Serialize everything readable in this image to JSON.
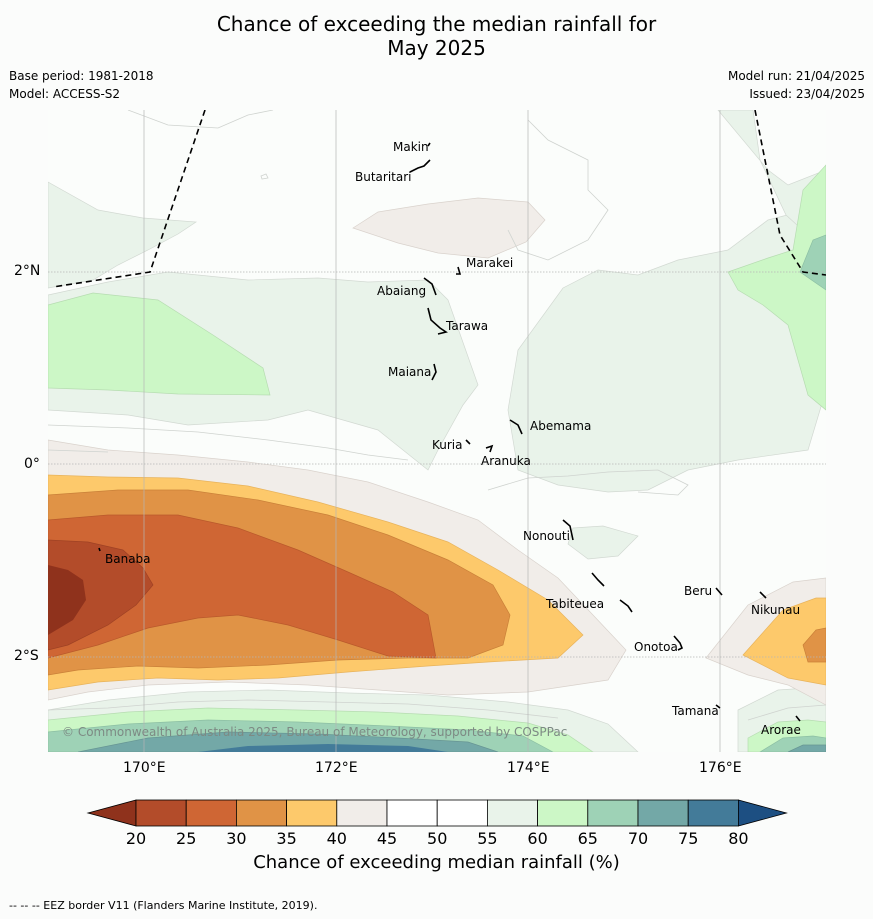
{
  "title_line1": "Chance of exceeding the median rainfall for",
  "title_line2": "May 2025",
  "meta": {
    "base_period": "Base period: 1981-2018",
    "model": "Model: ACCESS-S2",
    "model_run": "Model run: 21/04/2025",
    "issued": "Issued: 23/04/2025"
  },
  "copyright": "© Commonwealth of Australia 2025, Bureau of Meteorology, supported by COSPPac",
  "axes": {
    "x_ticks": [
      "170°E",
      "172°E",
      "174°E",
      "176°E"
    ],
    "y_ticks": [
      "2°N",
      "0°",
      "2°S"
    ]
  },
  "places": [
    "Makin",
    "Butaritari",
    "Marakei",
    "Abaiang",
    "Tarawa",
    "Maiana",
    "Abemama",
    "Kuria",
    "Aranuka",
    "Banaba",
    "Nonouti",
    "Beru",
    "Tabiteuea",
    "Nikunau",
    "Onotoa",
    "Tamana",
    "Arorae"
  ],
  "colorbar": {
    "ticks": [
      "20",
      "25",
      "30",
      "35",
      "40",
      "45",
      "50",
      "55",
      "60",
      "65",
      "70",
      "75",
      "80"
    ],
    "colors": [
      "#8f321c",
      "#b34c2a",
      "#cf6634",
      "#e09346",
      "#fdc96b",
      "#f1ede9",
      "#ffffff",
      "#ffffff",
      "#e9f3ea",
      "#ccf7c6",
      "#9ed2b6",
      "#73a8a7",
      "#437b99",
      "#1d4f82"
    ],
    "title": "Chance of exceeding median rainfall (%)"
  },
  "footer": "--  --  -- EEZ border V11 (Flanders Marine Institute, 2019)."
}
